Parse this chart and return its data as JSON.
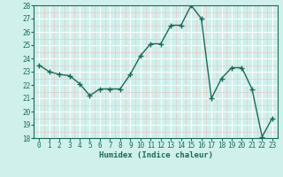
{
  "xlabel": "Humidex (Indice chaleur)",
  "x": [
    0,
    1,
    2,
    3,
    4,
    5,
    6,
    7,
    8,
    9,
    10,
    11,
    12,
    13,
    14,
    15,
    16,
    17,
    18,
    19,
    20,
    21,
    22,
    23
  ],
  "y": [
    23.5,
    23.0,
    22.8,
    22.7,
    22.1,
    21.2,
    21.7,
    21.7,
    21.7,
    22.8,
    24.2,
    25.1,
    25.1,
    26.5,
    26.5,
    28.0,
    27.0,
    21.0,
    22.5,
    23.3,
    23.3,
    21.7,
    18.1,
    19.5
  ],
  "line_color": "#1a6b5a",
  "marker": "+",
  "marker_size": 4,
  "bg_color": "#cff0eb",
  "grid_major_color": "#ffffff",
  "grid_minor_color": "#e8c8c8",
  "ylim": [
    18,
    28
  ],
  "xlim": [
    -0.5,
    23.5
  ],
  "yticks": [
    18,
    19,
    20,
    21,
    22,
    23,
    24,
    25,
    26,
    27,
    28
  ],
  "xticks": [
    0,
    1,
    2,
    3,
    4,
    5,
    6,
    7,
    8,
    9,
    10,
    11,
    12,
    13,
    14,
    15,
    16,
    17,
    18,
    19,
    20,
    21,
    22,
    23
  ],
  "tick_fontsize": 5.5,
  "label_fontsize": 6.5,
  "line_width": 1.0
}
